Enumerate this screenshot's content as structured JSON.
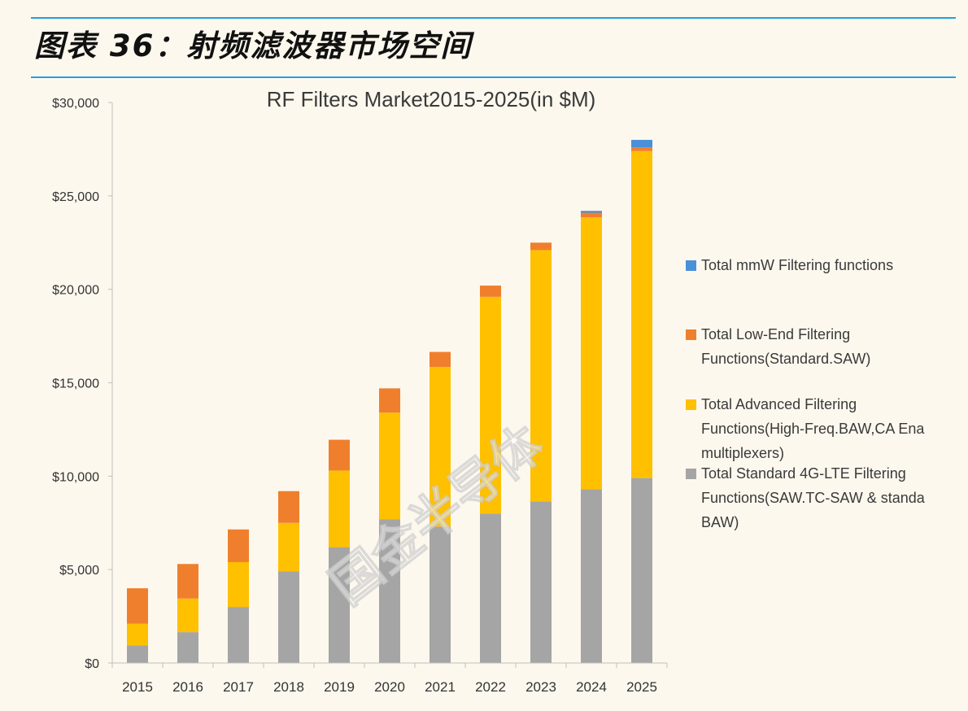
{
  "header": {
    "title": "图表 36：射频滤波器市场空间"
  },
  "watermark": "国金半导体",
  "colors": {
    "mmw": "#4a90d9",
    "low_end": "#f07f2d",
    "advanced": "#ffc000",
    "standard": "#a5a5a5",
    "rule": "#1fa2e0"
  },
  "chart_data": {
    "type": "bar",
    "stacked": true,
    "title": "RF Filters Market2015-2025(in $M)",
    "xlabel": "",
    "ylabel": "",
    "categories": [
      "2015",
      "2016",
      "2017",
      "2018",
      "2019",
      "2020",
      "2021",
      "2022",
      "2023",
      "2024",
      "2025"
    ],
    "ylim": [
      0,
      30000
    ],
    "yticks": [
      0,
      5000,
      10000,
      15000,
      20000,
      25000,
      30000
    ],
    "ytick_labels": [
      "$0",
      "$5,000",
      "$10,000",
      "$15,000",
      "$20,000",
      "$25,000",
      "$30,000"
    ],
    "grid": false,
    "legend_position": "right",
    "series": [
      {
        "name": "Total Standard 4G-LTE Filtering Functions(SAW.TC-SAW & standa BAW)",
        "legend_lines": [
          "Total Standard 4G-LTE Filtering",
          "Functions(SAW.TC-SAW & standa",
          "BAW)"
        ],
        "color": "#a5a5a5",
        "values": [
          950,
          1650,
          3000,
          4900,
          6200,
          7700,
          7300,
          8000,
          8650,
          9300,
          9900
        ]
      },
      {
        "name": "Total Advanced Filtering Functions(High-Freq.BAW,CA Ena multiplexers)",
        "legend_lines": [
          "Total Advanced Filtering",
          "Functions(High-Freq.BAW,CA Ena",
          "multiplexers)"
        ],
        "color": "#ffc000",
        "values": [
          1150,
          1800,
          2400,
          2600,
          4100,
          5700,
          8550,
          11600,
          13450,
          14550,
          17500
        ]
      },
      {
        "name": "Total Low-End Filtering Functions(Standard.SAW)",
        "legend_lines": [
          "Total Low-End Filtering",
          "Functions(Standard.SAW)"
        ],
        "color": "#f07f2d",
        "values": [
          1900,
          1850,
          1750,
          1700,
          1650,
          1300,
          800,
          600,
          400,
          250,
          200
        ]
      },
      {
        "name": "Total mmW Filtering functions",
        "legend_lines": [
          "Total mmW Filtering functions"
        ],
        "color": "#4a90d9",
        "values": [
          0,
          0,
          0,
          0,
          0,
          0,
          0,
          0,
          0,
          100,
          400
        ]
      }
    ]
  }
}
